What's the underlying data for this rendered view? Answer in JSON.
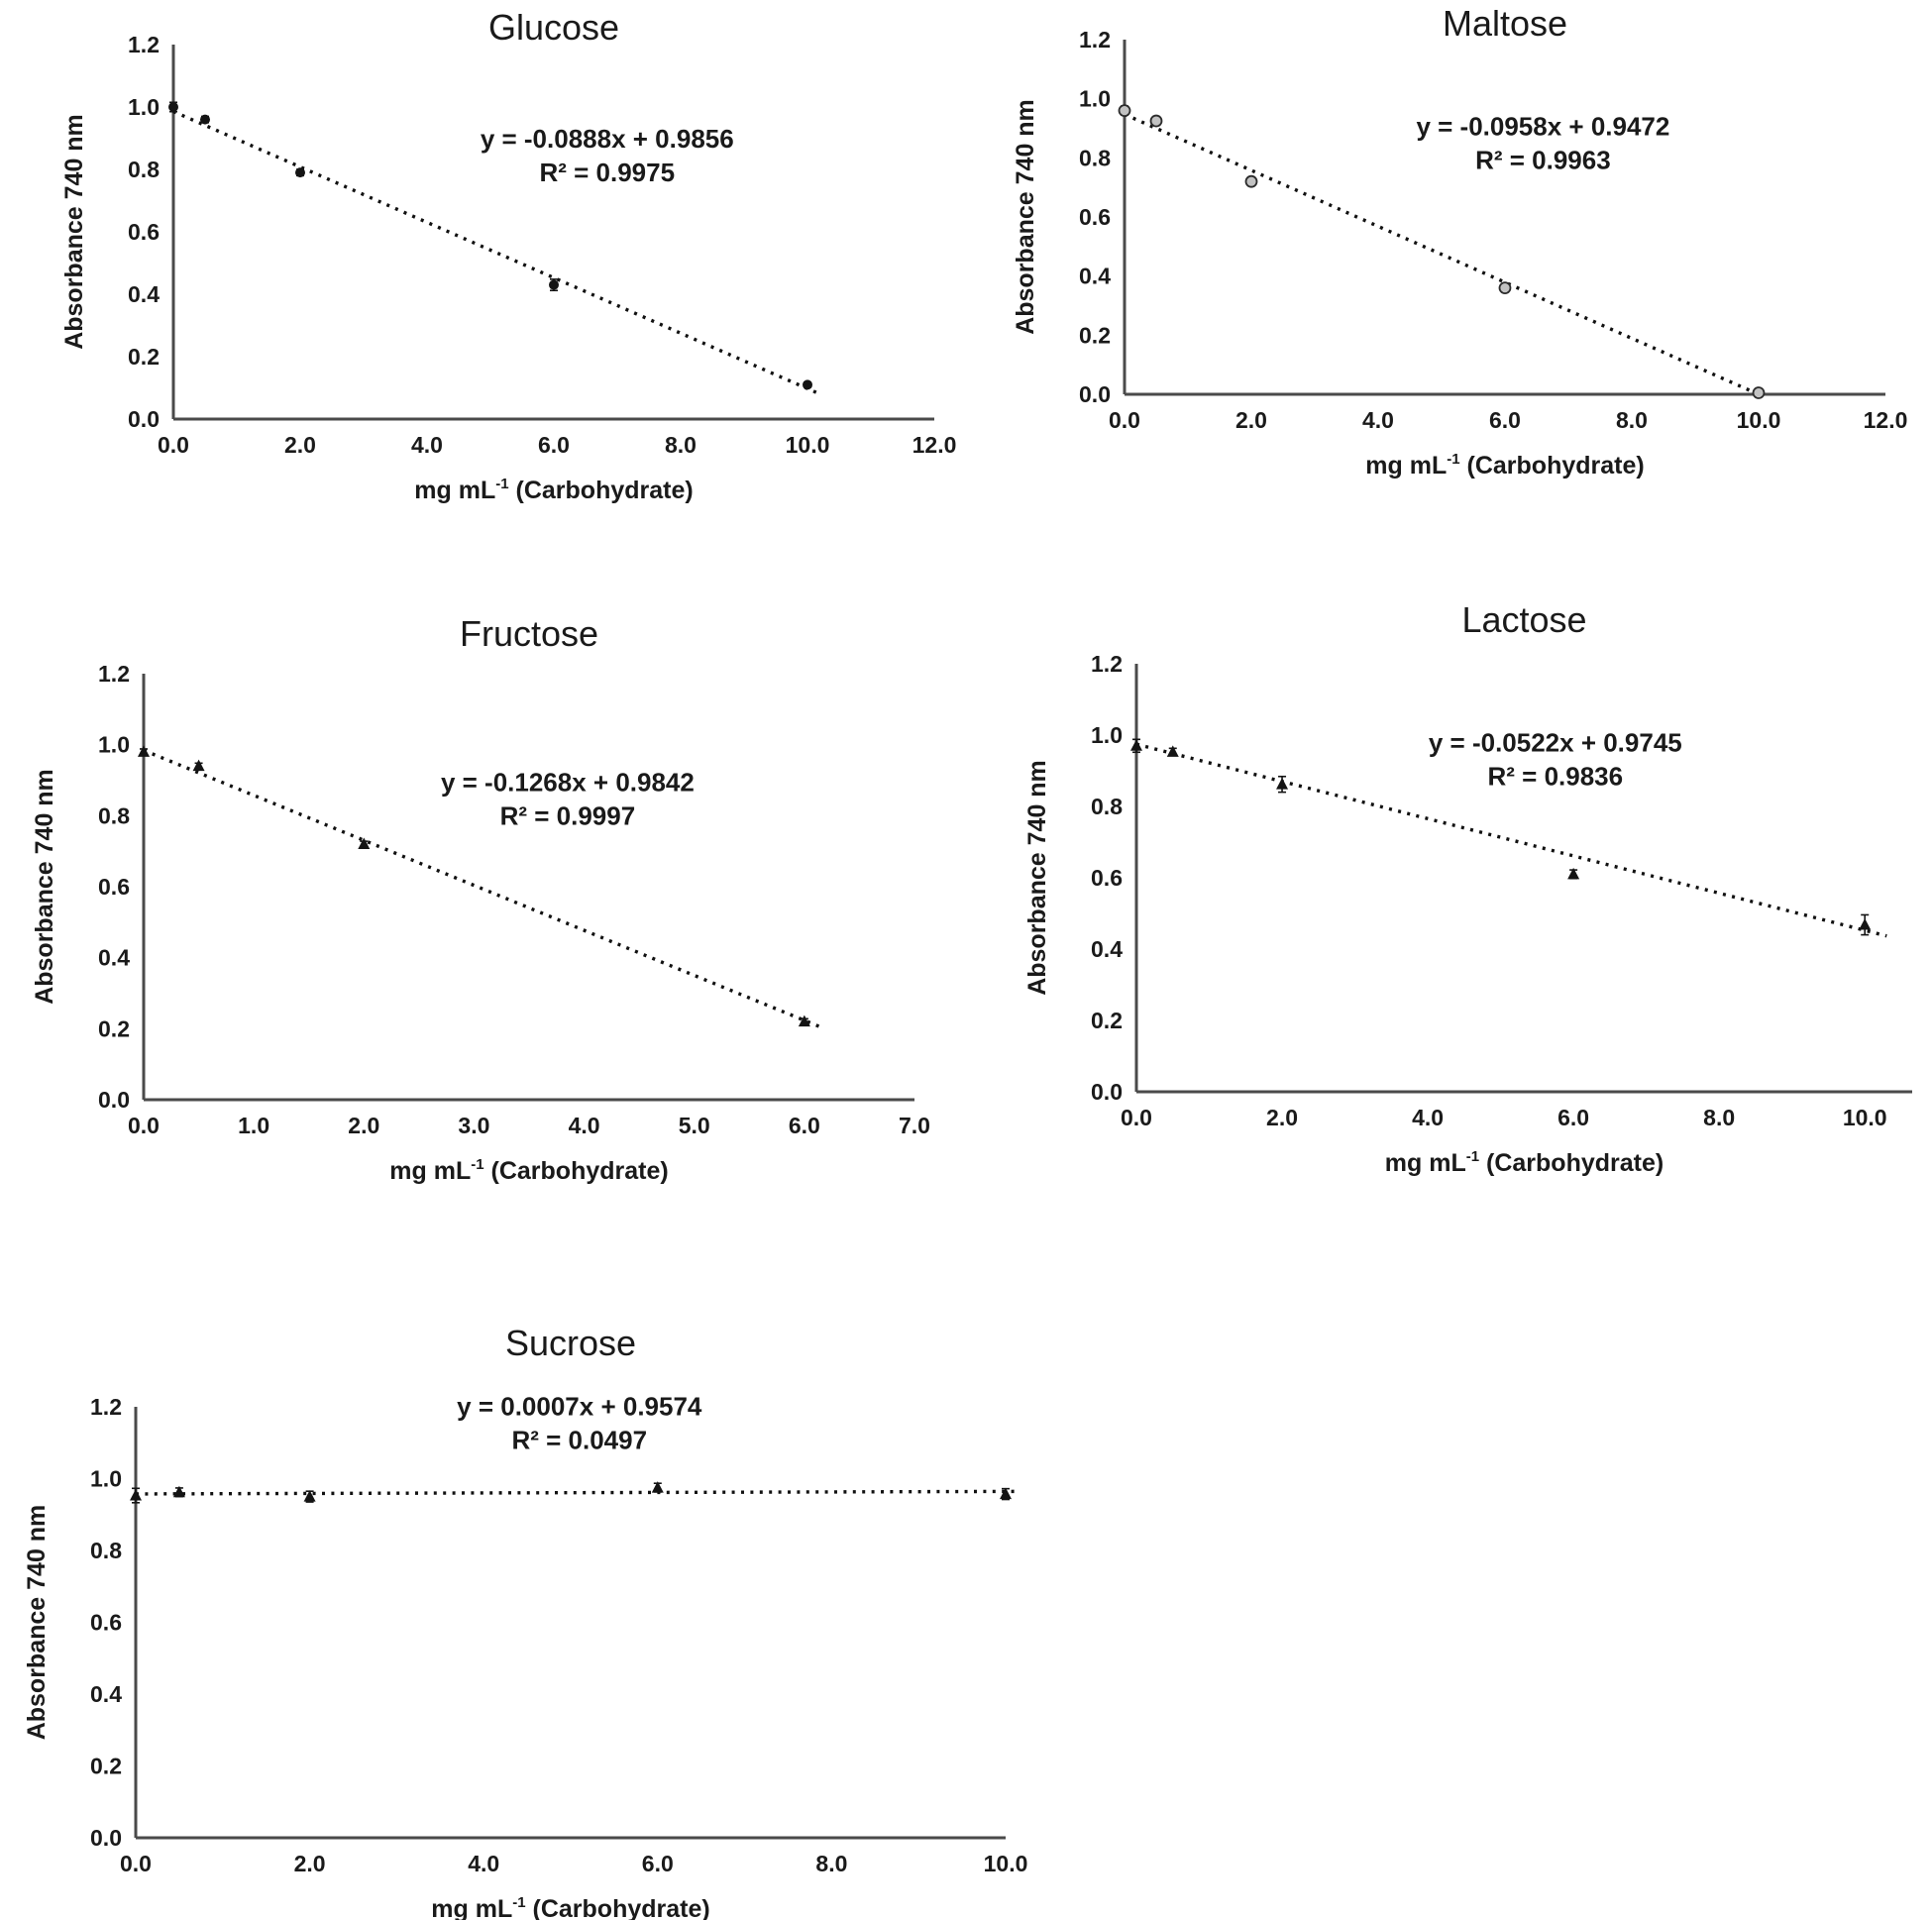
{
  "page": {
    "background": "#ffffff"
  },
  "shared": {
    "ylabel": "Absorbance 740 nm",
    "xlabel_prefix": "mg mL",
    "xlabel_sup": "-1",
    "xlabel_suffix": " (Carbohydrate)"
  },
  "colors": {
    "text": "#1a1a1a",
    "axis": "#4a4a4a",
    "marker": "#141414",
    "open_marker_fill": "#c2c2c2",
    "trend": "#111111"
  },
  "chart_data": [
    {
      "id": "glucose",
      "type": "scatter",
      "title": "Glucose",
      "equation": "y = -0.0888x + 0.9856",
      "r_squared": "R² = 0.9975",
      "marker": "circle-filled",
      "xlabel": "mg mL-1 (Carbohydrate)",
      "ylabel": "Absorbance 740 nm",
      "xlim": [
        0,
        12
      ],
      "ylim": [
        0,
        1.2
      ],
      "xticks": [
        0,
        2,
        4,
        6,
        8,
        10,
        12
      ],
      "yticks": [
        0,
        0.2,
        0.4,
        0.6,
        0.8,
        1.0,
        1.2
      ],
      "points": [
        {
          "x": 0,
          "y": 1.0,
          "err": 0.015
        },
        {
          "x": 0.5,
          "y": 0.96,
          "err": 0.01
        },
        {
          "x": 2,
          "y": 0.79,
          "err": 0.01
        },
        {
          "x": 6,
          "y": 0.43,
          "err": 0.018
        },
        {
          "x": 10,
          "y": 0.11,
          "err": 0.008
        }
      ],
      "trend": {
        "slope": -0.0888,
        "intercept": 0.9856,
        "x0": 0,
        "x1": 10.15
      },
      "eq_pos": {
        "fx": 0.57,
        "fy": 0.275
      }
    },
    {
      "id": "maltose",
      "type": "scatter",
      "title": "Maltose",
      "equation": "y = -0.0958x + 0.9472",
      "r_squared": "R² = 0.9963",
      "marker": "circle-open",
      "xlabel": "mg mL-1 (Carbohydrate)",
      "ylabel": "Absorbance 740 nm",
      "xlim": [
        0,
        12
      ],
      "ylim": [
        0,
        1.2
      ],
      "xticks": [
        0,
        2,
        4,
        6,
        8,
        10,
        12
      ],
      "yticks": [
        0,
        0.2,
        0.4,
        0.6,
        0.8,
        1.0,
        1.2
      ],
      "points": [
        {
          "x": 0,
          "y": 0.96,
          "err": 0.015
        },
        {
          "x": 0.5,
          "y": 0.925,
          "err": 0.008
        },
        {
          "x": 2,
          "y": 0.72,
          "err": 0.008
        },
        {
          "x": 6,
          "y": 0.36,
          "err": 0.008
        },
        {
          "x": 10,
          "y": 0.005,
          "err": 0.005
        }
      ],
      "trend": {
        "slope": -0.0958,
        "intercept": 0.9472,
        "x0": 0,
        "x1": 10.0
      },
      "eq_pos": {
        "fx": 0.55,
        "fy": 0.27
      }
    },
    {
      "id": "fructose",
      "type": "scatter",
      "title": "Fructose",
      "equation": "y = -0.1268x + 0.9842",
      "r_squared": "R² = 0.9997",
      "marker": "triangle-filled",
      "xlabel": "mg mL-1 (Carbohydrate)",
      "ylabel": "Absorbance 740 nm",
      "xlim": [
        0,
        7
      ],
      "ylim": [
        0,
        1.2
      ],
      "xticks": [
        0,
        1,
        2,
        3,
        4,
        5,
        6,
        7
      ],
      "yticks": [
        0,
        0.2,
        0.4,
        0.6,
        0.8,
        1.0,
        1.2
      ],
      "points": [
        {
          "x": 0,
          "y": 0.98,
          "err": 0.008
        },
        {
          "x": 0.5,
          "y": 0.94,
          "err": 0.008
        },
        {
          "x": 2,
          "y": 0.72,
          "err": 0.008
        },
        {
          "x": 6,
          "y": 0.22,
          "err": 0.008
        }
      ],
      "trend": {
        "slope": -0.1268,
        "intercept": 0.9842,
        "x0": 0,
        "x1": 6.15
      },
      "eq_pos": {
        "fx": 0.55,
        "fy": 0.275
      }
    },
    {
      "id": "lactose",
      "type": "scatter",
      "title": "Lactose",
      "equation": "y = -0.0522x + 0.9745",
      "r_squared": "R² = 0.9836",
      "marker": "triangle-filled",
      "xlabel": "mg mL-1 (Carbohydrate)",
      "ylabel": "Absorbance 740 nm",
      "xlim": [
        0,
        10.65
      ],
      "ylim": [
        0,
        1.2
      ],
      "xticks": [
        0,
        2,
        4,
        6,
        8,
        10
      ],
      "yticks": [
        0,
        0.2,
        0.4,
        0.6,
        0.8,
        1.0,
        1.2
      ],
      "points": [
        {
          "x": 0,
          "y": 0.97,
          "err": 0.018
        },
        {
          "x": 0.5,
          "y": 0.953,
          "err": 0.01
        },
        {
          "x": 2,
          "y": 0.862,
          "err": 0.022
        },
        {
          "x": 6,
          "y": 0.61,
          "err": 0.012
        },
        {
          "x": 10,
          "y": 0.468,
          "err": 0.028
        }
      ],
      "trend": {
        "slope": -0.0522,
        "intercept": 0.9745,
        "x0": 0,
        "x1": 10.3
      },
      "eq_pos": {
        "fx": 0.54,
        "fy": 0.205
      }
    },
    {
      "id": "sucrose",
      "type": "scatter",
      "title": "Sucrose",
      "equation": "y = 0.0007x + 0.9574",
      "r_squared": "R² = 0.0497",
      "marker": "triangle-filled",
      "xlabel": "mg mL-1 (Carbohydrate)",
      "ylabel": "Absorbance 740 nm",
      "xlim": [
        0,
        10
      ],
      "ylim": [
        0,
        1.2
      ],
      "xticks": [
        0,
        2,
        4,
        6,
        8,
        10
      ],
      "yticks": [
        0,
        0.2,
        0.4,
        0.6,
        0.8,
        1.0,
        1.2
      ],
      "points": [
        {
          "x": 0,
          "y": 0.953,
          "err": 0.02
        },
        {
          "x": 0.5,
          "y": 0.962,
          "err": 0.012
        },
        {
          "x": 2,
          "y": 0.95,
          "err": 0.015
        },
        {
          "x": 6,
          "y": 0.975,
          "err": 0.012
        },
        {
          "x": 10,
          "y": 0.957,
          "err": 0.015
        }
      ],
      "trend": {
        "slope": 0.0007,
        "intercept": 0.9574,
        "x0": 0,
        "x1": 10.1
      },
      "eq_pos": {
        "fx": 0.51,
        "fy": 0.02
      }
    }
  ]
}
